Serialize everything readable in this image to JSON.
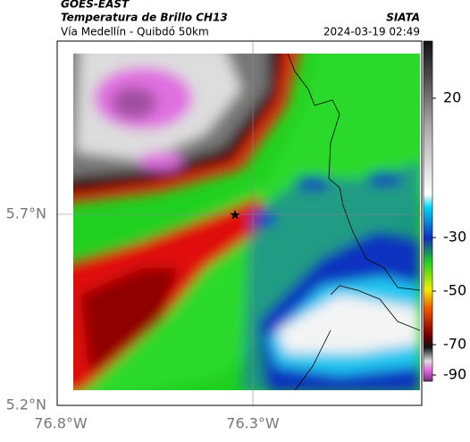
{
  "header": {
    "source": "GOES-EAST",
    "title": "Temperatura de Brillo CH13",
    "subtitle": "Vía Medellín - Quibdó 50km",
    "org": "SIATA",
    "datetime": "2024-03-19 02:49"
  },
  "map": {
    "lat_labels": [
      "5.7°N",
      "5.2°N"
    ],
    "lon_labels": [
      "76.8°W",
      "76.3°W"
    ]
  },
  "colorbar": {
    "ticks": [
      20,
      -30,
      -50,
      -70,
      -90
    ]
  }
}
